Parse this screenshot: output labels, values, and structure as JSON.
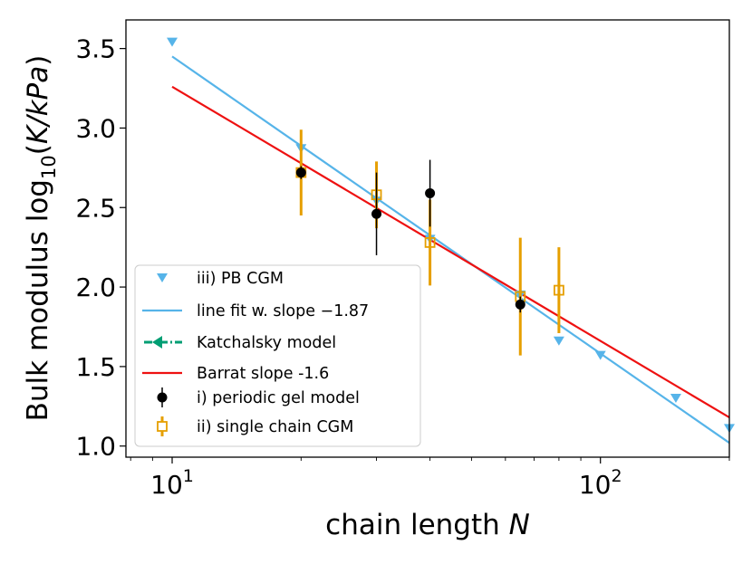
{
  "chart_data": {
    "type": "scatter",
    "xscale": "log",
    "xlim": [
      7.8,
      200
    ],
    "ylim": [
      0.93,
      3.68
    ],
    "xlabel": {
      "text": "chain length ",
      "var": "N"
    },
    "ylabel": {
      "prefix": "Bulk modulus log",
      "sub": "10",
      "open": "(",
      "var": "K/kPa",
      "close": ")"
    },
    "x_ticks": [
      {
        "value": 10,
        "base": "10",
        "exp": "1"
      },
      {
        "value": 100,
        "base": "10",
        "exp": "2"
      }
    ],
    "y_ticks": [
      {
        "value": 1.0,
        "label": "1.0"
      },
      {
        "value": 1.5,
        "label": "1.5"
      },
      {
        "value": 2.0,
        "label": "2.0"
      },
      {
        "value": 2.5,
        "label": "2.5"
      },
      {
        "value": 3.0,
        "label": "3.0"
      },
      {
        "value": 3.5,
        "label": "3.5"
      }
    ],
    "series": [
      {
        "name": "iii) PB CGM",
        "kind": "triangle",
        "color": "#56b4e9",
        "x": [
          10,
          20,
          30,
          40,
          65,
          80,
          100,
          150,
          200
        ],
        "y": [
          3.54,
          2.87,
          2.54,
          2.3,
          1.95,
          1.66,
          1.57,
          1.3,
          1.11
        ]
      },
      {
        "name": "line fit w. slope −1.87",
        "kind": "line",
        "color": "#56b4e9",
        "x": [
          10,
          200
        ],
        "y": [
          3.45,
          1.02
        ]
      },
      {
        "name": "Katchalsky model",
        "kind": "dashdot-marker",
        "color": "#009e73",
        "x": [],
        "y": []
      },
      {
        "name": "Barrat slope -1.6",
        "kind": "line",
        "color": "#ee1111",
        "x": [
          10,
          200
        ],
        "y": [
          3.26,
          1.18
        ]
      },
      {
        "name": "i) periodic gel model",
        "kind": "circle-err",
        "color": "#000000",
        "x": [
          20,
          30,
          40,
          65
        ],
        "y": [
          2.72,
          2.46,
          2.59,
          1.89
        ],
        "err": [
          0.04,
          0.26,
          0.21,
          0.05
        ]
      },
      {
        "name": "ii) single chain CGM",
        "kind": "square-err",
        "color": "#e69f00",
        "x": [
          20,
          30,
          40,
          65,
          80
        ],
        "y": [
          2.72,
          2.58,
          2.28,
          1.94,
          1.98
        ],
        "err": [
          0.27,
          0.21,
          0.27,
          0.37,
          0.27
        ]
      }
    ],
    "legend_position": "lower-left"
  }
}
